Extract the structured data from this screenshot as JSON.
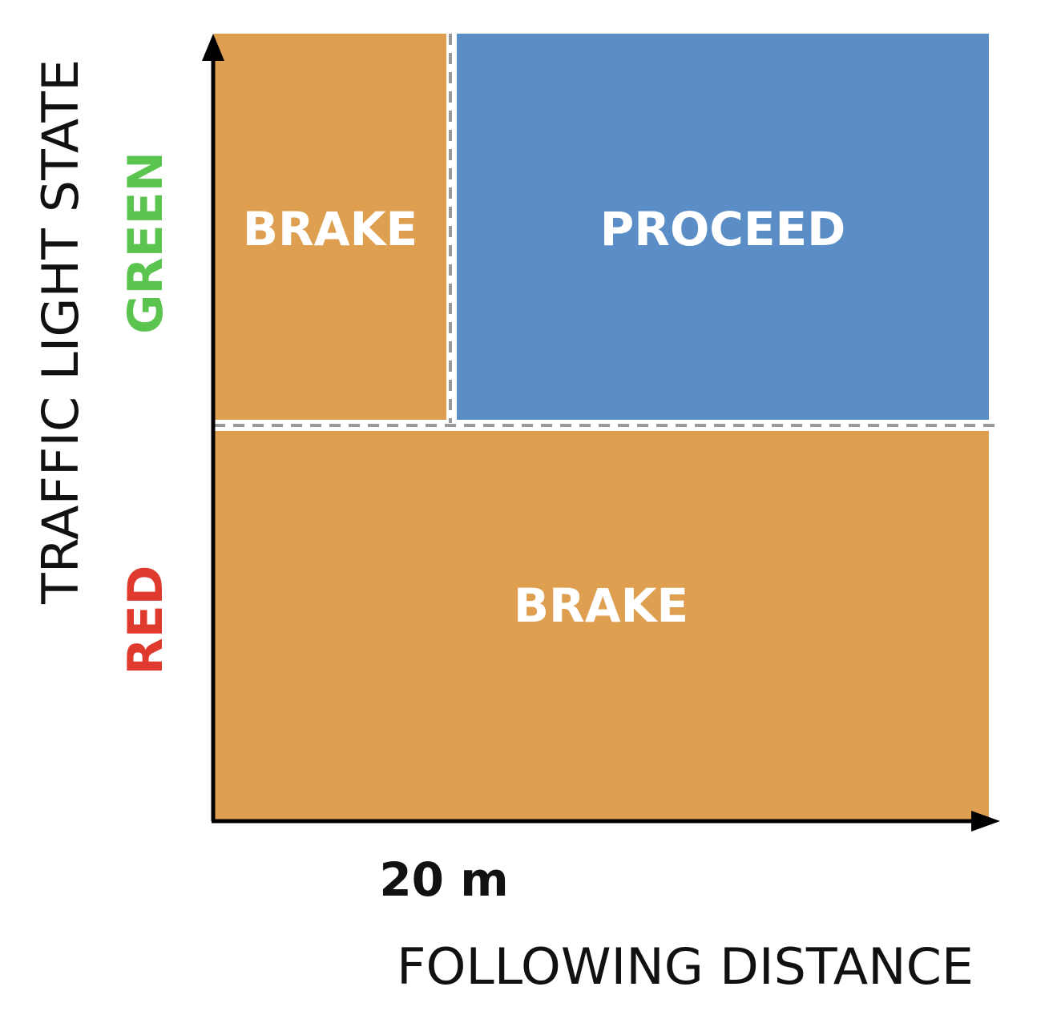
{
  "diagram": {
    "x_axis_title": "FOLLOWING DISTANCE",
    "y_axis_title": "TRAFFIC LIGHT STATE",
    "x_threshold_label": "20 m",
    "states": {
      "green": {
        "label": "GREEN",
        "color": "#5bc44f"
      },
      "red": {
        "label": "RED",
        "color": "#e03a2f"
      }
    },
    "regions": {
      "green_near": {
        "label": "BRAKE",
        "color": "#df9f50"
      },
      "green_far": {
        "label": "PROCEED",
        "color": "#5b8ec7"
      },
      "red_all": {
        "label": "BRAKE",
        "color": "#df9f50"
      }
    },
    "colors": {
      "axis": "#000000",
      "divider": "#999999"
    }
  }
}
